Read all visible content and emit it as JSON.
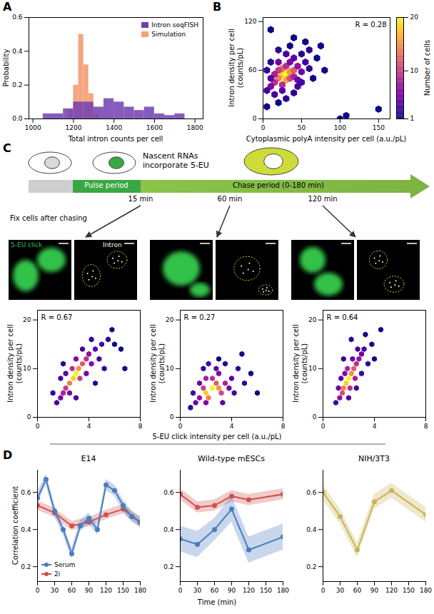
{
  "panel_labels": [
    "A",
    "B",
    "C",
    "D"
  ],
  "shared_labels": {
    "C": "5-EU click intensity per cell (a.u./pL)",
    "D": "Time (min)"
  },
  "schematic": {
    "cell_text": "Nascent RNAs incorporate 5-EU",
    "pulse": "Pulse period",
    "chase": "Chase period (0-180 min)",
    "timepoints": [
      "15 min",
      "60 min",
      "120 min"
    ],
    "fix": "Fix cells after chasing",
    "channels": [
      "5-EU click",
      "Intron"
    ]
  },
  "chart_data": [
    {
      "type": "histogram",
      "x_label": "Total intron counts per cell",
      "y_label": "Probability",
      "xlim": [
        980,
        1840
      ],
      "xticks": [
        1000,
        1200,
        1400,
        1600,
        1800
      ],
      "ylim": [
        0,
        0.6
      ],
      "yticks": [
        {
          "value": 0,
          "label": "0.0"
        },
        {
          "value": 0.2,
          "label": "0.2"
        },
        {
          "value": 0.4,
          "label": "0.4"
        },
        {
          "value": 0.6,
          "label": "0.6"
        }
      ],
      "legend": "upper right",
      "series": [
        {
          "name": "Intron seqFISH",
          "color": "#7040b0",
          "bins": [
            1050,
            1100,
            1150,
            1200,
            1250,
            1300,
            1350,
            1400,
            1450,
            1500,
            1550,
            1600,
            1650,
            1700,
            1750
          ],
          "values": [
            0.03,
            0.03,
            0.06,
            0.1,
            0.1,
            0.07,
            0.12,
            0.1,
            0.07,
            0.05,
            0.07,
            0.03,
            0.02,
            0.03
          ]
        },
        {
          "name": "Simulation",
          "color": "#f5a07a",
          "bins": [
            1175,
            1200,
            1225,
            1250,
            1275,
            1300,
            1325
          ],
          "values": [
            0.05,
            0.2,
            0.5,
            0.32,
            0.15,
            0.03
          ]
        }
      ]
    },
    {
      "type": "hexbin",
      "x_label": "Cytoplasmic polyA intensity per cell (a.u./pL)",
      "y_label": "Intron density per cell (counts/pL)",
      "xlim": [
        0,
        165
      ],
      "xticks": [
        0,
        50,
        100,
        150
      ],
      "ylim": [
        0,
        125
      ],
      "yticks": [
        0,
        60,
        120
      ],
      "annotation": "R = 0.28",
      "colorbar": {
        "label": "Number of cells",
        "range": [
          1,
          20
        ],
        "ticks": [
          1,
          10,
          20
        ]
      },
      "cells": [
        [
          25,
          55,
          18
        ],
        [
          30,
          55,
          20
        ],
        [
          35,
          58,
          15
        ],
        [
          20,
          50,
          14
        ],
        [
          30,
          48,
          16
        ],
        [
          40,
          60,
          12
        ],
        [
          25,
          62,
          13
        ],
        [
          35,
          50,
          11
        ],
        [
          15,
          45,
          9
        ],
        [
          20,
          60,
          10
        ],
        [
          40,
          52,
          8
        ],
        [
          45,
          65,
          7
        ],
        [
          30,
          65,
          9
        ],
        [
          10,
          40,
          6
        ],
        [
          15,
          55,
          8
        ],
        [
          50,
          58,
          5
        ],
        [
          35,
          70,
          6
        ],
        [
          25,
          42,
          9
        ],
        [
          45,
          48,
          5
        ],
        [
          20,
          70,
          5
        ],
        [
          40,
          75,
          4
        ],
        [
          55,
          70,
          3
        ],
        [
          10,
          50,
          4
        ],
        [
          5,
          35,
          3
        ],
        [
          30,
          80,
          3
        ],
        [
          50,
          80,
          2
        ],
        [
          60,
          62,
          2
        ],
        [
          15,
          30,
          3
        ],
        [
          25,
          35,
          4
        ],
        [
          45,
          40,
          3
        ],
        [
          60,
          85,
          2
        ],
        [
          70,
          75,
          1
        ],
        [
          5,
          60,
          2
        ],
        [
          10,
          70,
          2
        ],
        [
          20,
          85,
          2
        ],
        [
          35,
          90,
          1
        ],
        [
          55,
          95,
          1
        ],
        [
          40,
          100,
          1
        ],
        [
          65,
          50,
          1
        ],
        [
          75,
          90,
          1
        ],
        [
          80,
          60,
          1
        ],
        [
          30,
          25,
          2
        ],
        [
          20,
          20,
          1
        ],
        [
          5,
          15,
          1
        ],
        [
          100,
          0,
          1
        ],
        [
          108,
          4,
          1
        ],
        [
          150,
          12,
          1
        ],
        [
          10,
          110,
          1
        ],
        [
          40,
          32,
          2
        ],
        [
          50,
          45,
          3
        ]
      ]
    },
    {
      "type": "hexbin",
      "y_label": "Intron density per cell (counts/pL)",
      "xlim": [
        0,
        8
      ],
      "xticks": [
        0,
        4,
        8
      ],
      "ylim": [
        0,
        22
      ],
      "yticks": [
        0,
        10,
        20
      ],
      "annotation": "R = 0.67",
      "cells": [
        [
          2.8,
          8,
          18
        ],
        [
          3,
          9,
          20
        ],
        [
          3.2,
          10,
          15
        ],
        [
          2.5,
          7,
          14
        ],
        [
          3.5,
          11,
          12
        ],
        [
          2.2,
          6,
          10
        ],
        [
          3.8,
          12,
          9
        ],
        [
          2,
          5,
          8
        ],
        [
          4,
          13,
          7
        ],
        [
          2.7,
          10,
          9
        ],
        [
          3.3,
          8,
          10
        ],
        [
          4.2,
          11,
          6
        ],
        [
          1.8,
          4,
          5
        ],
        [
          4.5,
          14,
          4
        ],
        [
          3,
          12,
          6
        ],
        [
          2.5,
          5,
          6
        ],
        [
          3.8,
          9,
          5
        ],
        [
          1.5,
          3,
          3
        ],
        [
          5,
          15,
          3
        ],
        [
          4.8,
          12,
          3
        ],
        [
          2.2,
          9,
          4
        ],
        [
          3.5,
          14,
          3
        ],
        [
          5.5,
          16,
          2
        ],
        [
          6,
          15,
          1
        ],
        [
          6.5,
          14,
          1
        ],
        [
          1.2,
          5,
          2
        ],
        [
          4.2,
          16,
          2
        ],
        [
          5.2,
          10,
          2
        ],
        [
          2,
          11,
          2
        ],
        [
          3,
          4,
          3
        ],
        [
          6.8,
          10,
          1
        ],
        [
          4.5,
          7,
          2
        ],
        [
          5.8,
          18,
          1
        ],
        [
          1.8,
          8,
          3
        ]
      ]
    },
    {
      "type": "hexbin",
      "y_label": "Intron density per cell (counts/pL)",
      "xlim": [
        0,
        8
      ],
      "xticks": [
        0,
        4,
        8
      ],
      "ylim": [
        0,
        22
      ],
      "yticks": [
        0,
        10,
        20
      ],
      "annotation": "R = 0.27",
      "cells": [
        [
          2,
          5,
          18
        ],
        [
          2.5,
          6,
          20
        ],
        [
          3,
          6,
          15
        ],
        [
          2.2,
          4,
          14
        ],
        [
          2.8,
          7,
          12
        ],
        [
          1.8,
          6,
          10
        ],
        [
          3.2,
          5,
          11
        ],
        [
          2.5,
          8,
          9
        ],
        [
          3.5,
          7,
          8
        ],
        [
          1.5,
          4,
          7
        ],
        [
          2,
          8,
          8
        ],
        [
          3,
          9,
          6
        ],
        [
          1.2,
          3,
          5
        ],
        [
          3.8,
          6,
          5
        ],
        [
          4,
          8,
          4
        ],
        [
          2.8,
          10,
          4
        ],
        [
          1.5,
          7,
          5
        ],
        [
          2,
          3,
          6
        ],
        [
          3.3,
          3,
          4
        ],
        [
          4.2,
          5,
          3
        ],
        [
          4.5,
          10,
          2
        ],
        [
          3.5,
          11,
          2
        ],
        [
          1,
          5,
          3
        ],
        [
          5,
          7,
          2
        ],
        [
          5.5,
          9,
          1
        ],
        [
          6,
          5,
          1
        ],
        [
          4.8,
          13,
          1
        ],
        [
          2.2,
          11,
          3
        ],
        [
          1.8,
          10,
          2
        ],
        [
          3,
          12,
          1
        ],
        [
          0.8,
          2,
          2
        ]
      ]
    },
    {
      "type": "hexbin",
      "y_label": "Intron density per cell (counts/pL)",
      "xlim": [
        0,
        8
      ],
      "xticks": [
        0,
        4,
        8
      ],
      "ylim": [
        0,
        22
      ],
      "yticks": [
        0,
        10,
        20
      ],
      "annotation": "R = 0.64",
      "cells": [
        [
          1.8,
          7,
          18
        ],
        [
          2,
          8,
          20
        ],
        [
          2.2,
          9,
          15
        ],
        [
          1.6,
          6,
          14
        ],
        [
          2.4,
          10,
          12
        ],
        [
          1.5,
          5,
          11
        ],
        [
          2.6,
          11,
          9
        ],
        [
          1.9,
          10,
          8
        ],
        [
          2.1,
          6,
          9
        ],
        [
          1.3,
          4,
          7
        ],
        [
          2.8,
          12,
          7
        ],
        [
          2.5,
          8,
          8
        ],
        [
          1.7,
          9,
          6
        ],
        [
          3,
          13,
          5
        ],
        [
          1.2,
          6,
          5
        ],
        [
          2.3,
          12,
          5
        ],
        [
          3.2,
          14,
          3
        ],
        [
          2.7,
          14,
          3
        ],
        [
          1.4,
          8,
          4
        ],
        [
          3.5,
          11,
          2
        ],
        [
          2,
          4,
          4
        ],
        [
          1,
          3,
          3
        ],
        [
          3.8,
          15,
          1
        ],
        [
          3,
          9,
          3
        ],
        [
          4,
          12,
          1
        ],
        [
          2.2,
          16,
          2
        ],
        [
          1.6,
          12,
          2
        ],
        [
          4.5,
          18,
          1
        ],
        [
          2.6,
          6,
          3
        ],
        [
          3.3,
          17,
          1
        ]
      ]
    },
    {
      "type": "line",
      "title": "E14",
      "y_label": "Correlation coefficient",
      "xlim": [
        0,
        180
      ],
      "xticks": [
        0,
        30,
        60,
        90,
        120,
        150,
        180
      ],
      "ylim": [
        0.12,
        0.72
      ],
      "yticks": [
        0.2,
        0.4,
        0.6
      ],
      "legend": "lower left",
      "series": [
        {
          "name": "Serum",
          "color": "#4a7cc0",
          "marker": "circle",
          "x": [
            0,
            15,
            30,
            45,
            60,
            75,
            90,
            105,
            120,
            135,
            150,
            165,
            180
          ],
          "values": [
            0.57,
            0.67,
            0.5,
            0.4,
            0.27,
            0.42,
            0.46,
            0.4,
            0.64,
            0.61,
            0.53,
            0.47,
            0.44
          ],
          "error": [
            0.03,
            0.03,
            0.03,
            0.03,
            0.03,
            0.03,
            0.03,
            0.03,
            0.03,
            0.03,
            0.03,
            0.03,
            0.03
          ]
        },
        {
          "name": "2i",
          "color": "#d0514f",
          "marker": "circle",
          "x": [
            0,
            30,
            60,
            90,
            120,
            150,
            180
          ],
          "values": [
            0.53,
            0.49,
            0.42,
            0.44,
            0.48,
            0.51,
            0.44
          ],
          "error": [
            0.025,
            0.025,
            0.025,
            0.025,
            0.025,
            0.025,
            0.025
          ]
        }
      ]
    },
    {
      "type": "line",
      "title": "Wild-type mESCs",
      "xlim": [
        0,
        180
      ],
      "xticks": [
        0,
        30,
        60,
        90,
        120,
        150,
        180
      ],
      "ylim": [
        0.12,
        0.72
      ],
      "yticks": [
        0.2,
        0.4,
        0.6
      ],
      "series": [
        {
          "color": "#4a7cc0",
          "marker": "circle",
          "x": [
            0,
            30,
            60,
            90,
            120,
            180
          ],
          "values": [
            0.35,
            0.32,
            0.4,
            0.51,
            0.29,
            0.36
          ],
          "error": [
            0.07,
            0.07,
            0.06,
            0.07,
            0.07,
            0.07
          ]
        },
        {
          "color": "#d0514f",
          "marker": "circle",
          "x": [
            0,
            30,
            60,
            90,
            120,
            180
          ],
          "values": [
            0.59,
            0.52,
            0.53,
            0.58,
            0.56,
            0.59
          ],
          "error": [
            0.03,
            0.03,
            0.03,
            0.03,
            0.03,
            0.03
          ]
        }
      ]
    },
    {
      "type": "line",
      "title": "NIH/3T3",
      "xlim": [
        0,
        180
      ],
      "xticks": [
        0,
        30,
        60,
        90,
        120,
        150,
        180
      ],
      "ylim": [
        0.12,
        0.72
      ],
      "yticks": [
        0.2,
        0.4,
        0.6
      ],
      "series": [
        {
          "color": "#c9b458",
          "marker": "circle",
          "x": [
            0,
            30,
            60,
            90,
            120,
            180
          ],
          "values": [
            0.6,
            0.47,
            0.29,
            0.55,
            0.61,
            0.48
          ],
          "error": [
            0.04,
            0.04,
            0.04,
            0.04,
            0.04,
            0.04
          ]
        }
      ]
    }
  ]
}
